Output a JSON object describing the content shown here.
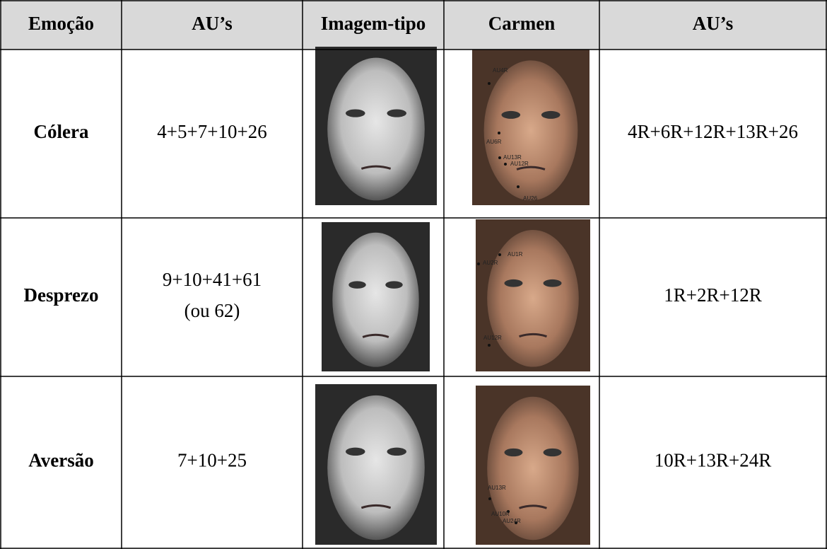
{
  "table": {
    "header": [
      "Emoção",
      "AU’s",
      "Imagem-tipo",
      "Carmen",
      "AU’s"
    ],
    "rows": [
      {
        "emotion": "Cólera",
        "aus": [
          "4+5+7+10+26"
        ],
        "carmen_aus": "4R+6R+12R+13R+26",
        "carmen_labels": [
          "AU4R",
          "AU6R",
          "AU13R",
          "AU12R",
          "AU26"
        ]
      },
      {
        "emotion": "Desprezo",
        "aus": [
          "9+10+41+61",
          "(ou 62)"
        ],
        "carmen_aus": "1R+2R+12R",
        "carmen_labels": [
          "AU1R",
          "AU2R",
          "AU12R"
        ]
      },
      {
        "emotion": "Aversão",
        "aus": [
          "7+10+25"
        ],
        "carmen_aus": "10R+13R+24R",
        "carmen_labels": [
          "AU13R",
          "AU10R",
          "AU24R"
        ]
      }
    ]
  }
}
